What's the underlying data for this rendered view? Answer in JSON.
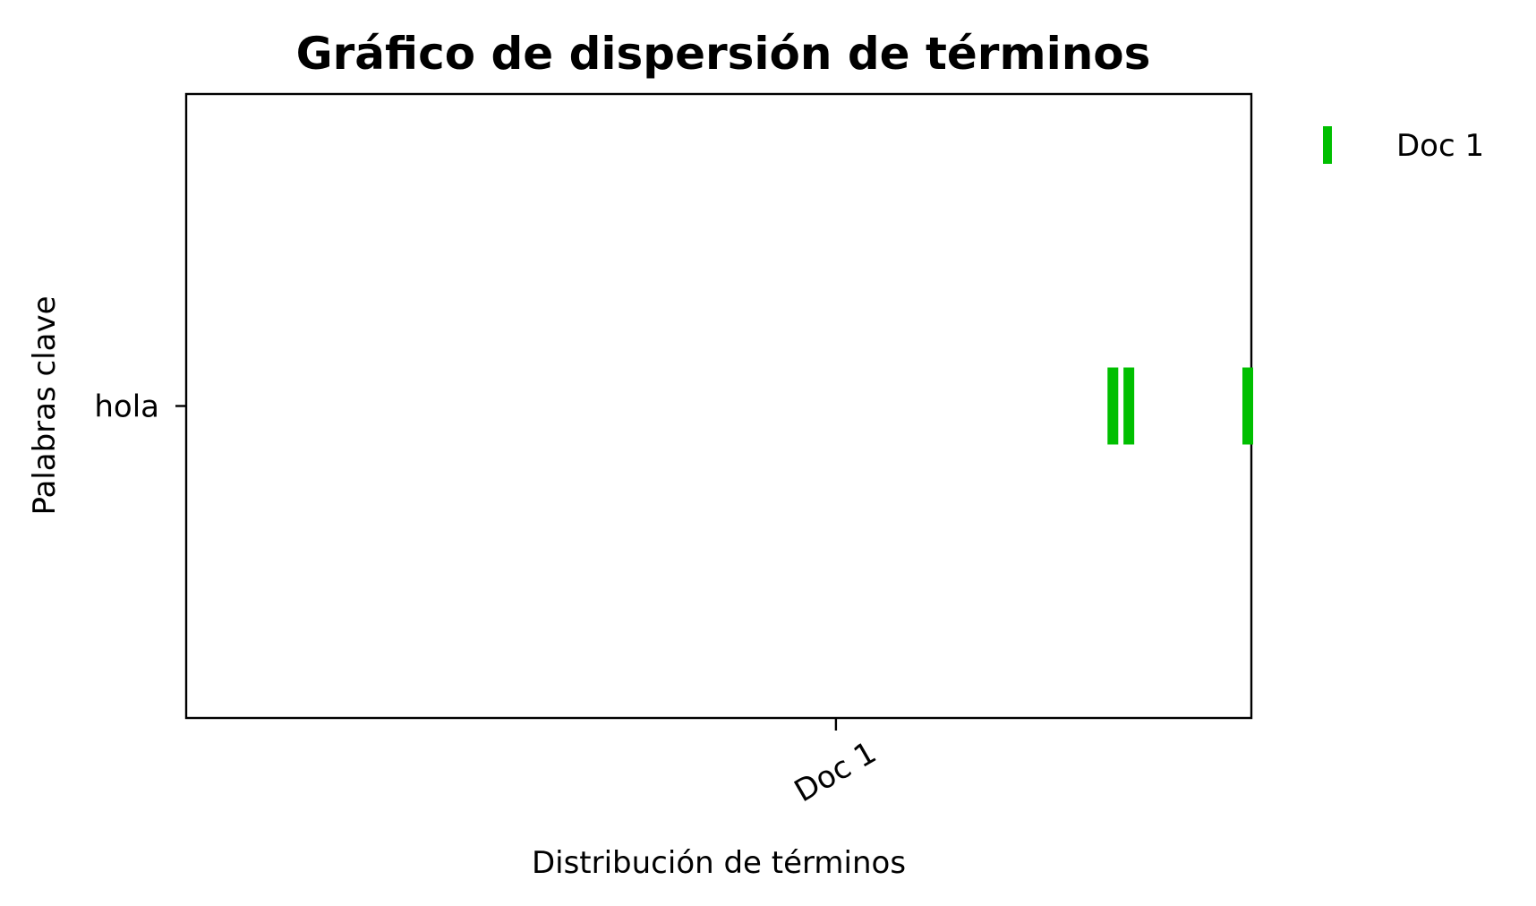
{
  "chart_data": {
    "type": "scatter",
    "title": "Gráfico de dispersión de términos",
    "xlabel": "Distribución de términos",
    "ylabel": "Palabras clave",
    "x_ticks": [
      {
        "value": 0.61,
        "label": "Doc 1"
      }
    ],
    "y_categories": [
      "hola"
    ],
    "xlim": [
      0,
      1
    ],
    "series": [
      {
        "name": "Doc 1",
        "color": "#00bf00",
        "category": "hola",
        "x": [
          0.87,
          0.885,
          1.0
        ]
      }
    ],
    "legend_position": "outside-top-right",
    "grid": false
  }
}
